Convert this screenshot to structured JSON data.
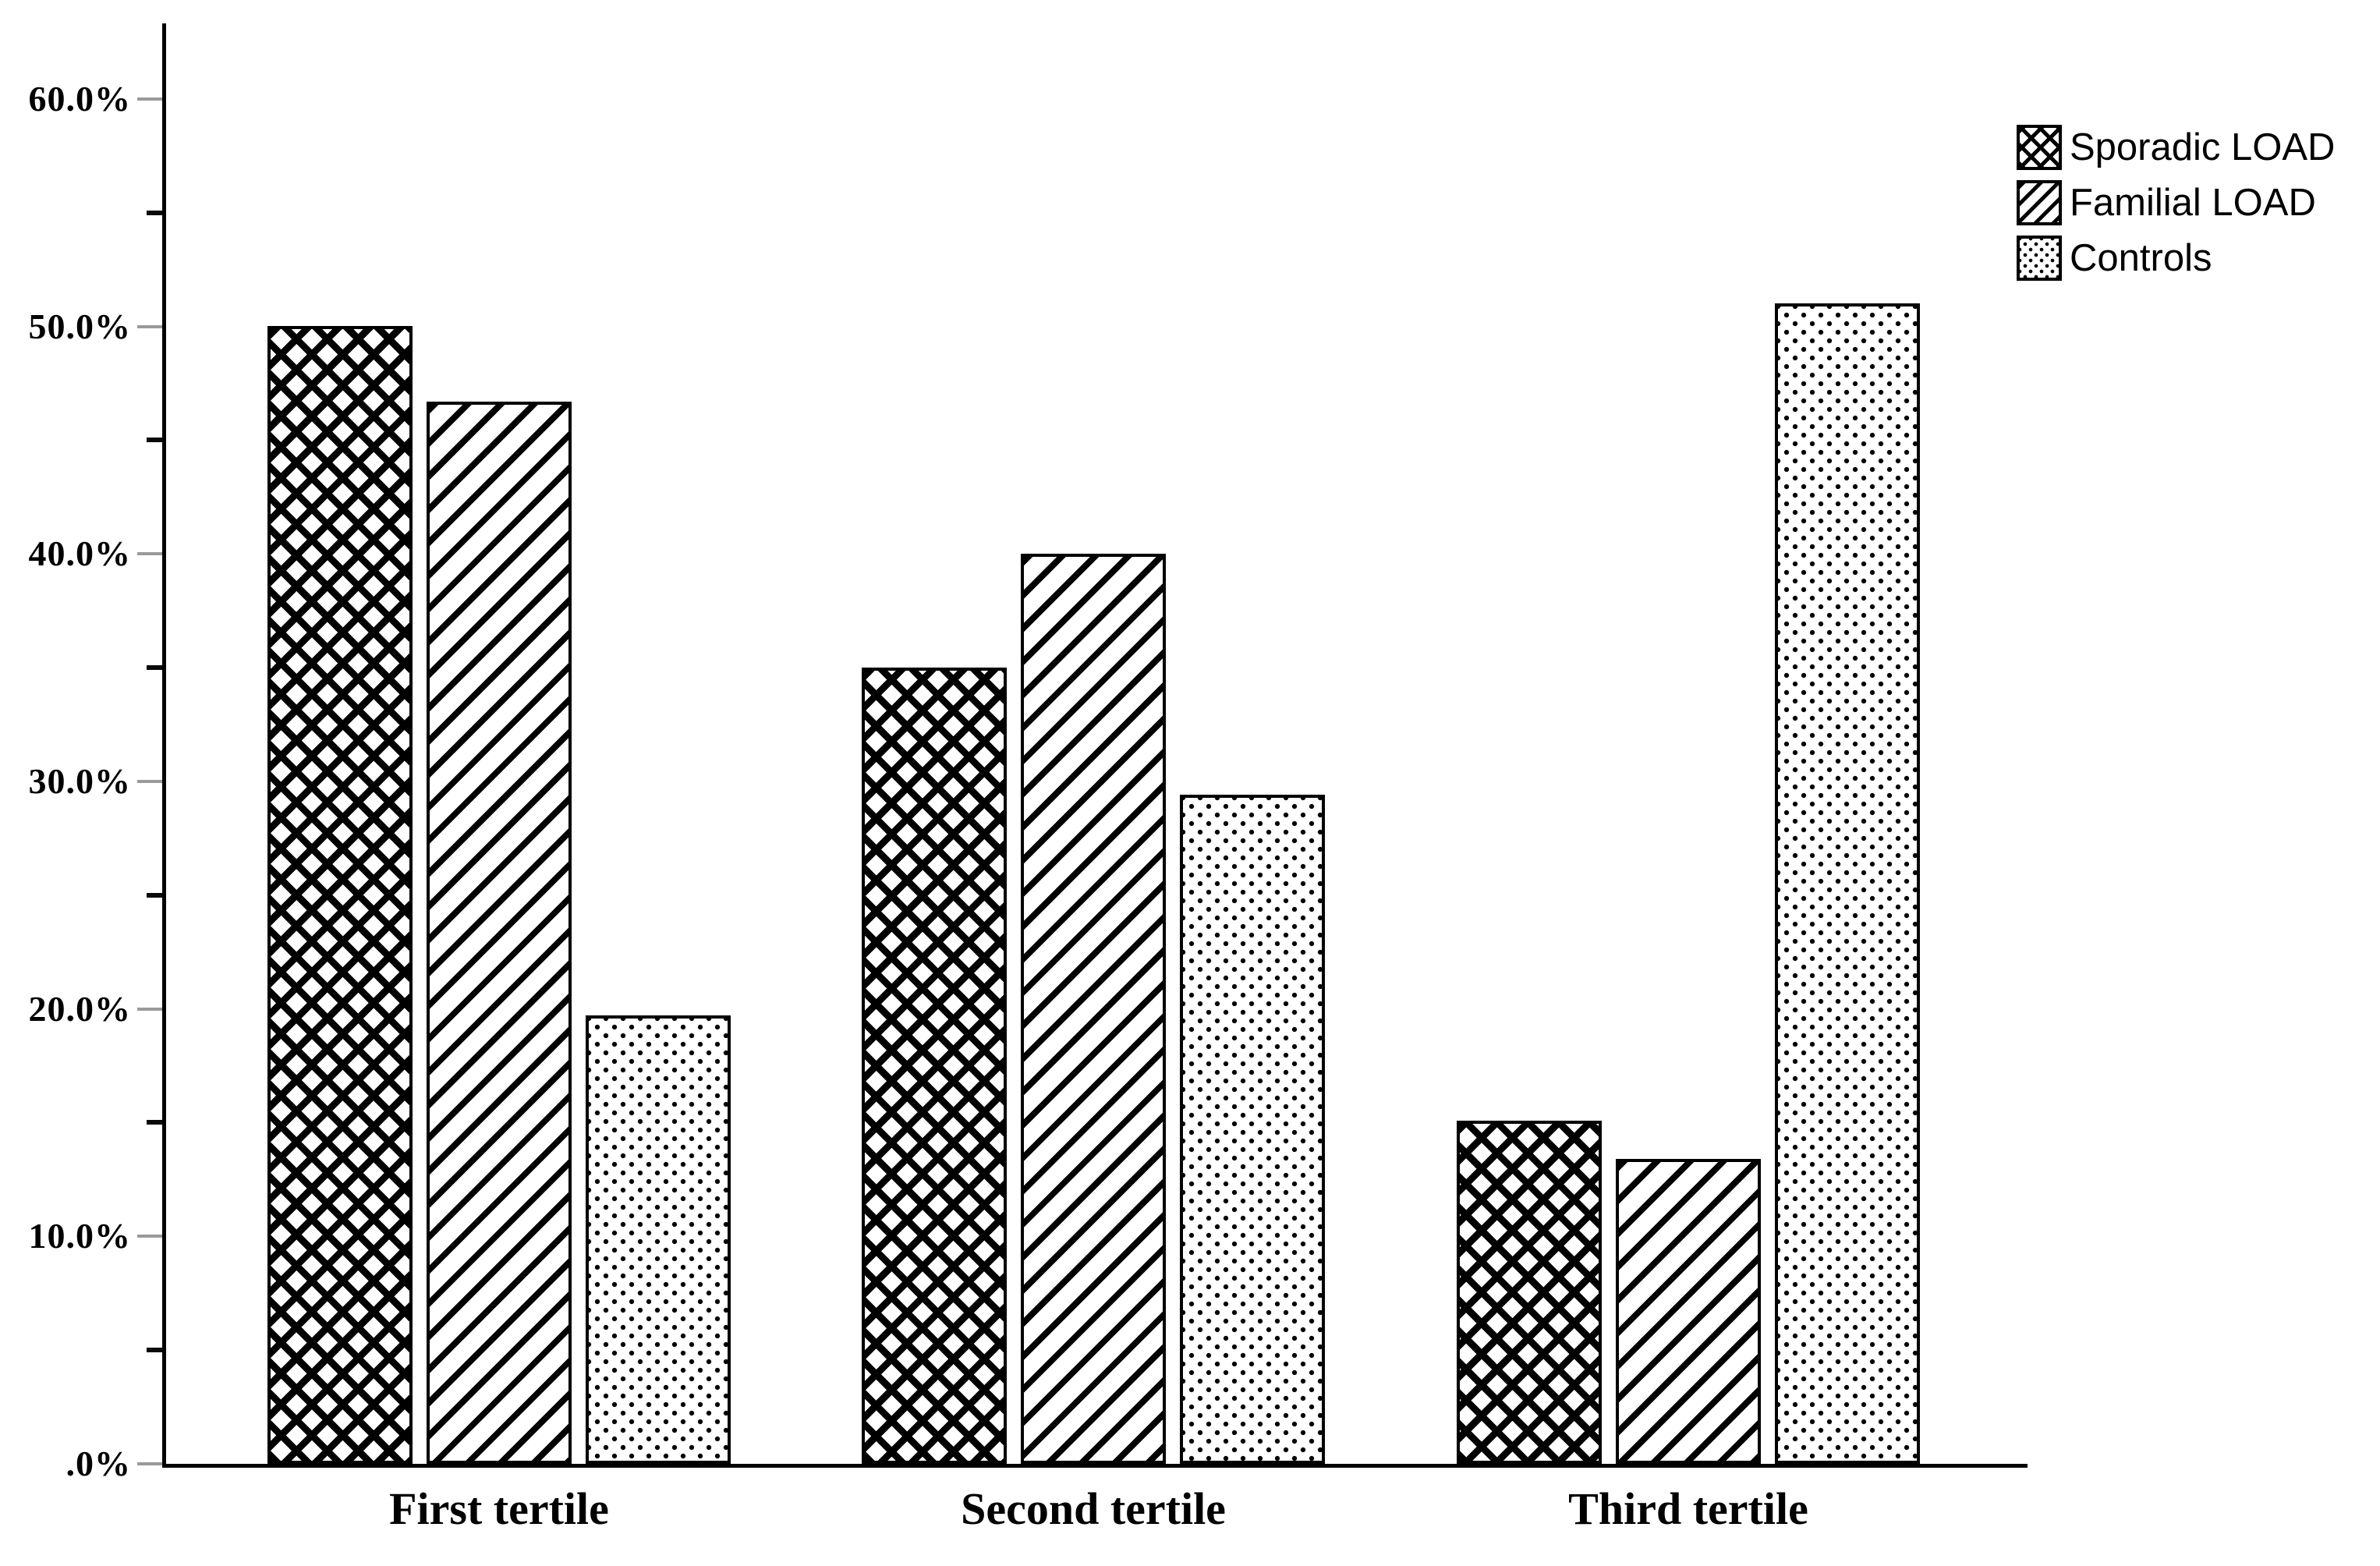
{
  "chart_data": {
    "type": "bar",
    "title": "",
    "xlabel": "",
    "ylabel": "",
    "categories": [
      "First tertile",
      "Second tertile",
      "Third tertile"
    ],
    "series": [
      {
        "name": "Sporadic LOAD",
        "pattern": "crosshatch",
        "values": [
          50.0,
          35.0,
          15.1
        ]
      },
      {
        "name": "Familial LOAD",
        "pattern": "diagonal",
        "values": [
          46.7,
          40.0,
          13.4
        ]
      },
      {
        "name": "Controls",
        "pattern": "dots",
        "values": [
          19.7,
          29.4,
          51.0
        ]
      }
    ],
    "yaxis": {
      "unit": "%",
      "range": [
        0,
        63
      ],
      "major_ticks": [
        {
          "value": 60,
          "label": "60.0%"
        },
        {
          "value": 50,
          "label": "50.0%"
        },
        {
          "value": 40,
          "label": "40.0%"
        },
        {
          "value": 30,
          "label": "30.0%"
        },
        {
          "value": 20,
          "label": "20.0%"
        },
        {
          "value": 10,
          "label": "10.0%"
        },
        {
          "value": 0,
          "label": ".0%"
        }
      ],
      "minor_tick_values": [
        55,
        45,
        35,
        25,
        15,
        5
      ]
    },
    "legend": {
      "position": "top-right",
      "entries": [
        {
          "label": "Sporadic LOAD",
          "pattern": "crosshatch"
        },
        {
          "label": "Familial LOAD",
          "pattern": "diagonal"
        },
        {
          "label": "Controls",
          "pattern": "dots"
        }
      ]
    },
    "grid": false,
    "colors": {
      "background": "#ffffff",
      "bar_fill": "#ffffff",
      "bar_border": "#000000",
      "axis": "#000000",
      "major_tick": "#9a9a9a",
      "minor_tick": "#0a0a0a",
      "text": "#000000"
    }
  }
}
